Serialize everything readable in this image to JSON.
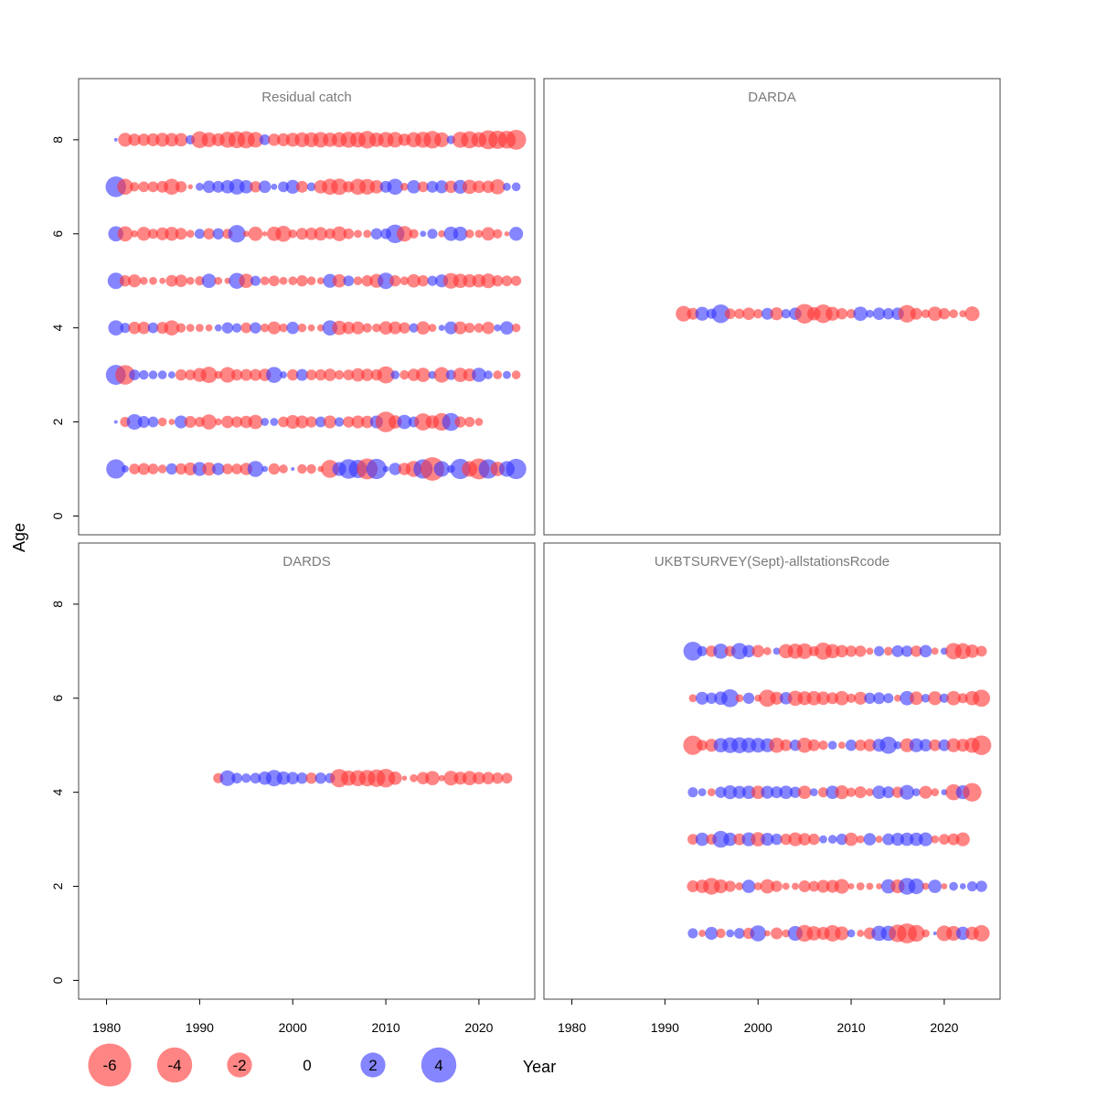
{
  "chart_data": {
    "type": "scatter",
    "xlabel": "Year",
    "ylabel": "Age",
    "xlim": [
      1977,
      2026
    ],
    "ylim": [
      -0.4,
      9.3
    ],
    "x_ticks": [
      "1980",
      "1990",
      "2000",
      "2010",
      "2020"
    ],
    "y_ticks": [
      "0",
      "2",
      "4",
      "6",
      "8"
    ],
    "colors": {
      "negative": "#ff3333",
      "positive": "#3333ff",
      "alpha": 0.6
    },
    "legend": [
      {
        "label": "-6",
        "value": -6
      },
      {
        "label": "-4",
        "value": -4
      },
      {
        "label": "-2",
        "value": -2
      },
      {
        "label": "0",
        "value": 0
      },
      {
        "label": "2",
        "value": 2
      },
      {
        "label": "4",
        "value": 4
      }
    ],
    "panels": [
      {
        "title": "Residual catch",
        "years_start": 1981,
        "series": [
          {
            "age": 8,
            "residuals": [
              0.1,
              -1.5,
              -1.2,
              -1.2,
              -1.3,
              -1.5,
              -1.4,
              -1.4,
              0.7,
              -2.2,
              -1.7,
              -1.3,
              -2.0,
              -2.2,
              -2.3,
              -1.9,
              0.9,
              -1.2,
              -1.3,
              -1.5,
              -1.7,
              -1.7,
              -1.9,
              -1.6,
              -1.8,
              -2.0,
              -1.9,
              -2.4,
              -1.6,
              -1.9,
              -1.9,
              -1.2,
              -1.8,
              -2.0,
              -2.4,
              -1.7,
              0.6,
              -2.0,
              -2.3,
              -1.8,
              -2.8,
              -2.6,
              -2.5,
              -3.1
            ]
          },
          {
            "age": 7,
            "residuals": [
              3.3,
              -2.0,
              -0.7,
              -0.9,
              -0.9,
              -1.1,
              -2.0,
              -1.0,
              -0.2,
              0.5,
              1.2,
              1.1,
              1.4,
              1.9,
              1.4,
              -1.0,
              1.2,
              0.3,
              0.9,
              1.5,
              -1.1,
              0.6,
              -1.4,
              -2.0,
              -2.1,
              -1.0,
              -2.0,
              -1.9,
              -1.4,
              1.1,
              2.0,
              -0.5,
              1.4,
              -0.9,
              1.1,
              1.3,
              -1.2,
              1.5,
              -1.6,
              -1.2,
              -1.2,
              -1.8,
              0.5,
              0.6
            ]
          },
          {
            "age": 6,
            "residuals": [
              1.8,
              -1.8,
              -0.4,
              -1.5,
              -0.8,
              -1.3,
              -1.5,
              -1.1,
              -0.5,
              0.8,
              -1.0,
              1.0,
              -0.8,
              2.4,
              -0.3,
              -1.6,
              -0.2,
              -1.6,
              -2.0,
              -0.6,
              -1.1,
              -1.2,
              -1.4,
              -0.9,
              -1.7,
              -0.9,
              -0.5,
              -0.5,
              1.0,
              0.9,
              2.7,
              -1.9,
              -0.7,
              0.3,
              0.8,
              -0.4,
              1.6,
              1.6,
              -0.6,
              -0.5,
              -1.4,
              -0.7,
              -0.2,
              1.5
            ]
          },
          {
            "age": 5,
            "residuals": [
              2.1,
              -1.0,
              -1.3,
              -0.5,
              -0.5,
              -0.3,
              -1.1,
              -1.2,
              -0.5,
              -0.7,
              1.6,
              -0.5,
              -0.3,
              2.0,
              -1.6,
              0.8,
              -0.6,
              -0.9,
              -0.5,
              -0.6,
              -1.0,
              -0.6,
              -0.4,
              1.5,
              -1.4,
              0.9,
              -0.6,
              -1.0,
              -1.5,
              2.1,
              -1.0,
              -0.6,
              -1.4,
              -1.0,
              0.8,
              1.3,
              -1.9,
              -1.6,
              -1.4,
              -1.4,
              -1.7,
              -1.0,
              -0.9,
              -0.8
            ]
          },
          {
            "age": 4,
            "residuals": [
              1.8,
              0.8,
              -1.2,
              -1.2,
              0.9,
              -1.1,
              -1.8,
              -0.7,
              -0.5,
              -0.5,
              -0.4,
              0.4,
              1.0,
              0.7,
              -0.9,
              1.0,
              -0.6,
              -1.3,
              -0.6,
              1.2,
              -0.6,
              -0.4,
              -0.4,
              1.8,
              -1.6,
              -1.2,
              -1.3,
              -0.7,
              -0.6,
              -1.4,
              -1.3,
              -1.0,
              0.7,
              -1.4,
              -0.5,
              0.3,
              1.3,
              -1.3,
              -0.8,
              -0.7,
              -1.2,
              0.4,
              1.4,
              -0.6
            ]
          },
          {
            "age": 3,
            "residuals": [
              3.1,
              -3.0,
              0.9,
              0.7,
              0.6,
              0.6,
              0.4,
              -1.0,
              -0.9,
              -1.5,
              -2.1,
              -0.5,
              -1.9,
              -1.0,
              -1.1,
              -1.1,
              -1.2,
              2.0,
              0.4,
              -1.0,
              1.1,
              -0.9,
              -1.0,
              -1.2,
              -0.7,
              -0.9,
              -1.4,
              -1.2,
              -1.0,
              -2.3,
              0.6,
              -0.7,
              -1.2,
              -1.6,
              0.5,
              -1.9,
              0.8,
              -1.6,
              -1.3,
              1.6,
              0.6,
              -0.6,
              0.5,
              -0.6
            ]
          },
          {
            "age": 2,
            "residuals": [
              0.1,
              -0.8,
              1.9,
              1.1,
              0.9,
              -0.6,
              -0.3,
              1.3,
              -1.1,
              -0.8,
              -1.8,
              -0.4,
              -1.2,
              -1.0,
              -1.2,
              -1.6,
              0.5,
              0.5,
              -0.9,
              -1.5,
              -1.3,
              -1.0,
              0.9,
              -1.3,
              0.7,
              -1.0,
              -1.3,
              -1.2,
              1.3,
              -3.3,
              -1.4,
              1.6,
              0.9,
              -2.3,
              -1.4,
              -2.4,
              2.5,
              -1.0,
              -0.8,
              -0.5
            ]
          },
          {
            "age": 1,
            "residuals": [
              2.9,
              0.4,
              -0.9,
              -1.1,
              -0.9,
              -0.6,
              1.0,
              -1.0,
              -1.3,
              1.5,
              -1.4,
              1.2,
              -0.9,
              -0.9,
              -1.2,
              2.0,
              0.3,
              -1.0,
              -0.6,
              0.1,
              -0.7,
              -0.7,
              -0.3,
              -2.5,
              1.5,
              3.0,
              2.6,
              -3.4,
              3.2,
              0.3,
              1.2,
              -1.2,
              -2.0,
              2.9,
              -4.3,
              1.9,
              0.5,
              3.2,
              -1.9,
              -3.4,
              2.9,
              -1.6,
              1.9,
              3.2
            ]
          }
        ]
      },
      {
        "title": "DARDA",
        "years_start": 1992,
        "series": [
          {
            "age": 4.3,
            "residuals": [
              -1.9,
              -1.1,
              1.5,
              0.8,
              2.7,
              -0.9,
              -0.8,
              -1.2,
              -0.7,
              1.1,
              -1.3,
              0.7,
              1.2,
              -3.0,
              -1.4,
              -2.7,
              -1.5,
              -1.0,
              -0.7,
              1.6,
              0.5,
              1.2,
              1.0,
              1.2,
              -2.4,
              -1.1,
              -0.6,
              -1.6,
              -1.0,
              -0.6,
              -0.4,
              -1.7
            ]
          }
        ]
      },
      {
        "title": "DARDS",
        "years_start": 1992,
        "series": [
          {
            "age": 4.3,
            "residuals": [
              -0.8,
              1.9,
              0.9,
              0.7,
              0.9,
              1.4,
              2.1,
              1.4,
              1.2,
              1.0,
              -1.0,
              1.0,
              0.8,
              -2.6,
              -1.8,
              -2.0,
              -2.1,
              -2.4,
              -2.7,
              -1.4,
              -0.2,
              -0.5,
              -1.2,
              -1.6,
              -0.3,
              -1.7,
              -1.3,
              -1.6,
              -1.2,
              -1.2,
              -1.0,
              -0.9
            ]
          }
        ]
      },
      {
        "title": "UKBTSURVEY(Sept)-allstationsRcode",
        "years_start": 1993,
        "series": [
          {
            "age": 7,
            "residuals": [
              2.8,
              0.8,
              -1.0,
              1.8,
              -0.9,
              2.1,
              1.2,
              -1.2,
              -0.5,
              0.4,
              -1.6,
              -1.8,
              -1.9,
              -0.8,
              -2.3,
              -1.6,
              -1.2,
              -1.0,
              -1.0,
              -0.4,
              0.8,
              -0.6,
              1.1,
              1.0,
              -1.0,
              1.2,
              -0.4,
              0.4,
              -2.1,
              -2.0,
              -1.4,
              -0.9
            ]
          },
          {
            "age": 6,
            "residuals": [
              -0.5,
              1.3,
              1.0,
              1.4,
              2.5,
              -0.5,
              1.0,
              -0.4,
              -2.3,
              -1.3,
              1.2,
              -1.8,
              -1.5,
              -1.6,
              -1.4,
              -1.1,
              -1.6,
              -0.7,
              -1.3,
              1.0,
              1.1,
              0.8,
              -0.4,
              1.6,
              -1.4,
              0.6,
              -1.5,
              0.7,
              -1.6,
              -0.8,
              -1.6,
              -2.3
            ]
          },
          {
            "age": 5,
            "residuals": [
              -2.9,
              -0.9,
              -1.3,
              1.6,
              1.9,
              2.0,
              1.8,
              1.7,
              1.5,
              -1.8,
              -1.1,
              1.0,
              -1.8,
              -1.1,
              -0.7,
              0.6,
              -0.4,
              1.0,
              -1.0,
              -1.2,
              1.3,
              2.3,
              0.5,
              -1.5,
              1.5,
              1.2,
              -1.1,
              1.1,
              -1.5,
              -1.3,
              -1.8,
              -3.0
            ]
          },
          {
            "age": 4,
            "residuals": [
              0.8,
              0.5,
              -0.5,
              1.0,
              1.5,
              1.3,
              1.4,
              -1.4,
              1.3,
              1.1,
              1.4,
              1.0,
              -1.4,
              0.5,
              -0.8,
              1.4,
              -1.5,
              -0.7,
              -1.1,
              -0.5,
              1.4,
              1.1,
              -1.0,
              1.7,
              0.5,
              -1.3,
              -0.5,
              0.3,
              -2.0,
              1.5,
              -2.7
            ]
          },
          {
            "age": 3,
            "residuals": [
              -0.9,
              1.4,
              -0.9,
              2.2,
              1.4,
              -1.1,
              1.5,
              -1.6,
              1.3,
              1.0,
              -1.0,
              -1.5,
              -1.2,
              -1.0,
              0.5,
              0.6,
              1.0,
              -1.4,
              -0.5,
              1.2,
              -0.4,
              1.1,
              1.3,
              1.4,
              1.4,
              1.5,
              -0.5,
              -0.9,
              -1.1,
              -1.5
            ]
          },
          {
            "age": 2,
            "residuals": [
              -1.1,
              -1.4,
              -2.2,
              -1.5,
              -1.0,
              -0.5,
              1.4,
              -0.5,
              -1.6,
              -1.0,
              -0.4,
              -0.4,
              -1.1,
              -0.9,
              -1.3,
              -1.3,
              -1.7,
              -0.3,
              -0.5,
              -0.4,
              -0.3,
              1.6,
              -1.5,
              2.2,
              1.9,
              -0.4,
              1.4,
              -0.3,
              0.6,
              0.3,
              0.8,
              1.0
            ]
          },
          {
            "age": 1,
            "residuals": [
              0.8,
              -0.4,
              1.3,
              -0.7,
              0.5,
              0.9,
              -1.0,
              2.0,
              -0.3,
              -1.1,
              -0.5,
              1.7,
              -2.2,
              -1.6,
              -1.3,
              -2.1,
              -1.5,
              0.5,
              -0.4,
              -1.1,
              1.8,
              1.8,
              -2.4,
              -3.1,
              -2.2,
              -0.5,
              0.1,
              -1.9,
              -1.7,
              1.4,
              -1.4,
              -2.1
            ]
          }
        ]
      }
    ]
  }
}
